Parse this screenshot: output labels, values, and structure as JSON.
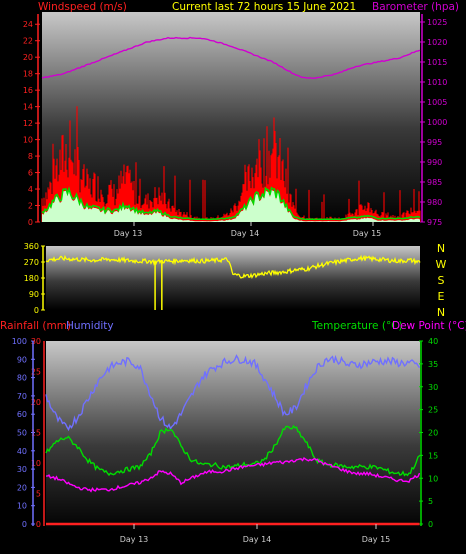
{
  "colors": {
    "wind_axis": "#ff2020",
    "baro_axis": "#d000d0",
    "title": "#ffff00",
    "gust": "#ff0000",
    "avg_wind": "#00dd00",
    "wind_fill": "#ccffcc",
    "wind_dir": "#ffff00",
    "rain": "#ff2020",
    "humidity": "#7070ff",
    "temp": "#00dd00",
    "dew": "#ff00ff",
    "plain": "#cccccc"
  },
  "chart_data": [
    {
      "type": "area",
      "title": "Current last 72 hours 15 June 2021",
      "left_label": "Windspeed (m/s)",
      "right_label": "Barometer (hpa)",
      "x_ticks": [
        "Day 13",
        "Day 14",
        "Day 15"
      ],
      "y_left_ticks": [
        "0",
        "2",
        "4",
        "6",
        "8",
        "10",
        "12",
        "14",
        "16",
        "18",
        "20",
        "22",
        "24"
      ],
      "y_right_ticks": [
        "975",
        "980",
        "985",
        "990",
        "995",
        "1000",
        "1005",
        "1010",
        "1015",
        "1020",
        "1025"
      ],
      "ylim_left": [
        0,
        25
      ],
      "ylim_right": [
        975,
        1027
      ],
      "x_range_hours": [
        0,
        72
      ],
      "series": [
        {
          "role": "gust",
          "x_hours": [
            0,
            1,
            2,
            3,
            4,
            5,
            6,
            7,
            8,
            9,
            10,
            11,
            12,
            13,
            14,
            15,
            16,
            17,
            18,
            19,
            20,
            21,
            22,
            23,
            24,
            25,
            26,
            27,
            28,
            29,
            30,
            31,
            32,
            33,
            34,
            35,
            36,
            37,
            38,
            39,
            40,
            41,
            42,
            43,
            44,
            45,
            46,
            47,
            48,
            49,
            50,
            51,
            52,
            53,
            54,
            55,
            56,
            57,
            58,
            59,
            60,
            61,
            62,
            63,
            64,
            65,
            66,
            67,
            68,
            69,
            70,
            71,
            72
          ],
          "values": [
            3.5,
            4.2,
            6.0,
            7.8,
            9.5,
            10.5,
            9.0,
            8.2,
            6.0,
            5.0,
            5.5,
            5.0,
            4.2,
            4.5,
            4.0,
            5.5,
            6.2,
            5.0,
            4.0,
            3.5,
            3.0,
            3.5,
            4.0,
            3.5,
            2.5,
            2.0,
            1.5,
            1.2,
            1.0,
            0.8,
            0.6,
            0.5,
            0.5,
            0.6,
            0.8,
            1.0,
            1.5,
            2.5,
            4.0,
            5.5,
            7.5,
            8.5,
            9.0,
            9.8,
            10.2,
            9.5,
            7.0,
            4.0,
            2.0,
            1.0,
            0.8,
            0.6,
            0.5,
            0.4,
            0.5,
            0.6,
            0.5,
            0.5,
            0.8,
            1.2,
            1.5,
            2.0,
            2.5,
            1.8,
            1.2,
            1.0,
            1.0,
            0.8,
            0.8,
            1.0,
            1.5,
            1.8,
            1.5
          ]
        },
        {
          "role": "average",
          "x_hours": [
            0,
            1,
            2,
            3,
            4,
            5,
            6,
            7,
            8,
            9,
            10,
            11,
            12,
            13,
            14,
            15,
            16,
            17,
            18,
            19,
            20,
            21,
            22,
            23,
            24,
            25,
            26,
            27,
            28,
            29,
            30,
            31,
            32,
            33,
            34,
            35,
            36,
            37,
            38,
            39,
            40,
            41,
            42,
            43,
            44,
            45,
            46,
            47,
            48,
            49,
            50,
            51,
            52,
            53,
            54,
            55,
            56,
            57,
            58,
            59,
            60,
            61,
            62,
            63,
            64,
            65,
            66,
            67,
            68,
            69,
            70,
            71,
            72
          ],
          "values": [
            1.0,
            1.5,
            2.2,
            2.8,
            3.2,
            3.5,
            3.0,
            2.5,
            2.0,
            1.5,
            1.5,
            1.4,
            1.2,
            1.3,
            1.2,
            1.5,
            2.0,
            1.6,
            1.2,
            1.0,
            0.8,
            1.0,
            1.1,
            0.9,
            0.6,
            0.4,
            0.3,
            0.2,
            0.2,
            0.1,
            0.1,
            0.1,
            0.1,
            0.1,
            0.2,
            0.2,
            0.3,
            0.6,
            1.2,
            1.8,
            2.5,
            3.0,
            3.2,
            3.5,
            3.6,
            3.2,
            2.2,
            1.2,
            0.4,
            0.2,
            0.1,
            0.1,
            0.1,
            0.1,
            0.1,
            0.1,
            0.1,
            0.1,
            0.2,
            0.3,
            0.3,
            0.4,
            0.5,
            0.4,
            0.2,
            0.2,
            0.2,
            0.2,
            0.2,
            0.2,
            0.3,
            0.4,
            0.3
          ]
        },
        {
          "role": "barometer",
          "x_hours": [
            0,
            4,
            8,
            12,
            16,
            20,
            24,
            28,
            30,
            32,
            36,
            40,
            44,
            48,
            50,
            52,
            56,
            60,
            64,
            68,
            72
          ],
          "values": [
            1011,
            1012,
            1014,
            1016,
            1018,
            1020,
            1021,
            1021,
            1021,
            1020.5,
            1019,
            1017,
            1015,
            1012,
            1011,
            1011,
            1012,
            1014,
            1015,
            1016,
            1018
          ]
        }
      ]
    },
    {
      "type": "line",
      "series_name": "Wind direction",
      "y_left_ticks": [
        "0",
        "90",
        "180",
        "270",
        "360"
      ],
      "y_right_ticks": [
        "N",
        "W",
        "S",
        "E",
        "N"
      ],
      "ylim": [
        0,
        360
      ],
      "x_hours": [
        0,
        3,
        6,
        9,
        12,
        15,
        18,
        20,
        21,
        22,
        24,
        27,
        30,
        33,
        35,
        36,
        38,
        40,
        42,
        44,
        46,
        48,
        50,
        52,
        54,
        56,
        58,
        60,
        62,
        64,
        66,
        68,
        70,
        72
      ],
      "values": [
        280,
        290,
        285,
        280,
        285,
        280,
        275,
        275,
        270,
        275,
        275,
        280,
        275,
        280,
        285,
        200,
        190,
        195,
        205,
        210,
        215,
        225,
        230,
        245,
        260,
        270,
        280,
        290,
        290,
        285,
        280,
        275,
        280,
        270
      ],
      "dips": [
        {
          "x_hours": 21,
          "value": 0
        },
        {
          "x_hours": 22.3,
          "value": 0
        }
      ]
    },
    {
      "type": "line",
      "left_label_1": "Rainfall (mm)",
      "left_label_2": "Humidity",
      "right_label_1": "Temperature (°C)",
      "right_label_2": "Dew Point (°C)",
      "x_ticks": [
        "Day 13",
        "Day 14",
        "Day 15"
      ],
      "humidity_ticks": [
        "0",
        "10",
        "20",
        "30",
        "40",
        "50",
        "60",
        "70",
        "80",
        "90",
        "100"
      ],
      "rain_ticks": [
        "0",
        "5",
        "10",
        "15",
        "20",
        "25",
        "30"
      ],
      "temp_ticks": [
        "0",
        "5",
        "10",
        "15",
        "20",
        "25",
        "30",
        "35",
        "40"
      ],
      "ylim_humidity": [
        0,
        100
      ],
      "ylim_temp": [
        0,
        40
      ],
      "series": [
        {
          "name": "Humidity",
          "x_hours": [
            0,
            2,
            4,
            6,
            8,
            10,
            12,
            14,
            16,
            18,
            20,
            22,
            24,
            26,
            28,
            30,
            32,
            34,
            36,
            38,
            40,
            42,
            44,
            46,
            48,
            50,
            52,
            54,
            56,
            58,
            60,
            62,
            64,
            66,
            68,
            70,
            72
          ],
          "values": [
            70,
            58,
            52,
            58,
            68,
            78,
            85,
            88,
            89,
            86,
            72,
            58,
            52,
            60,
            70,
            80,
            85,
            88,
            90,
            90,
            88,
            80,
            70,
            60,
            63,
            75,
            85,
            90,
            90,
            87,
            87,
            88,
            89,
            89,
            88,
            88,
            86
          ]
        },
        {
          "name": "Temperature",
          "x_hours": [
            0,
            2,
            4,
            6,
            8,
            10,
            12,
            14,
            16,
            18,
            20,
            22,
            24,
            26,
            28,
            30,
            32,
            34,
            36,
            38,
            40,
            42,
            44,
            46,
            48,
            50,
            52,
            54,
            56,
            58,
            60,
            62,
            64,
            66,
            68,
            70,
            72
          ],
          "values": [
            15.5,
            18,
            19,
            17,
            14,
            12,
            11,
            11.5,
            12,
            12.5,
            15,
            20,
            21,
            17,
            14,
            13,
            13,
            12.5,
            12.5,
            13,
            13,
            14,
            17,
            21,
            21,
            18,
            14,
            13,
            12.8,
            12.5,
            12.5,
            12.5,
            12.3,
            11.5,
            11,
            11,
            15
          ]
        },
        {
          "name": "Dew Point",
          "x_hours": [
            0,
            2,
            4,
            6,
            8,
            10,
            12,
            14,
            16,
            18,
            20,
            22,
            24,
            26,
            28,
            30,
            32,
            34,
            36,
            38,
            40,
            42,
            44,
            46,
            48,
            50,
            52,
            54,
            56,
            58,
            60,
            62,
            64,
            66,
            68,
            70,
            72
          ],
          "values": [
            10.5,
            10,
            9,
            8,
            7.5,
            7.5,
            7.5,
            8,
            8.5,
            9,
            10,
            11.5,
            11,
            9,
            10,
            11,
            11.5,
            11.5,
            12,
            12.5,
            12.8,
            13,
            13.5,
            13.5,
            14,
            14.2,
            14,
            13,
            12.3,
            11.5,
            11,
            11,
            10.5,
            10,
            9.5,
            9.5,
            11
          ]
        },
        {
          "name": "Rainfall",
          "x_hours": [
            0,
            72
          ],
          "values": [
            0,
            0
          ]
        }
      ]
    }
  ]
}
